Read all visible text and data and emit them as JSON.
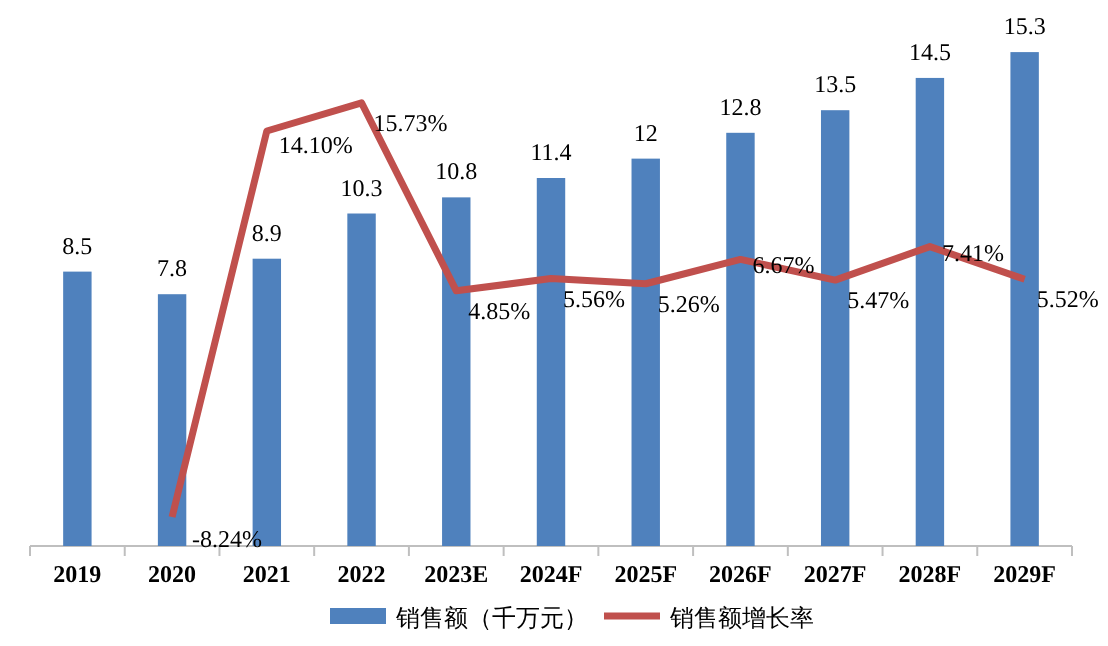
{
  "chart_data": {
    "type": "bar",
    "categories": [
      "2019",
      "2020",
      "2021",
      "2022",
      "2023E",
      "2024F",
      "2025F",
      "2026F",
      "2027F",
      "2028F",
      "2029F"
    ],
    "series": [
      {
        "name": "销售额（千万元）",
        "color": "#4f81bd",
        "values": [
          8.5,
          7.8,
          8.9,
          10.3,
          10.8,
          11.4,
          12,
          12.8,
          13.5,
          14.5,
          15.3
        ]
      },
      {
        "name": "销售额增长率",
        "type": "line",
        "axis": "y2",
        "color": "#c0504d",
        "values": [
          null,
          -8.24,
          14.1,
          15.73,
          4.85,
          5.56,
          5.26,
          6.67,
          5.47,
          7.41,
          5.52
        ],
        "value_labels": [
          null,
          "-8.24%",
          "14.10%",
          "15.73%",
          "4.85%",
          "5.56%",
          "5.26%",
          "6.67%",
          "5.47%",
          "7.41%",
          "5.52%"
        ]
      }
    ],
    "data_labels": true,
    "legend": "bottom",
    "tick_labels": "x"
  }
}
